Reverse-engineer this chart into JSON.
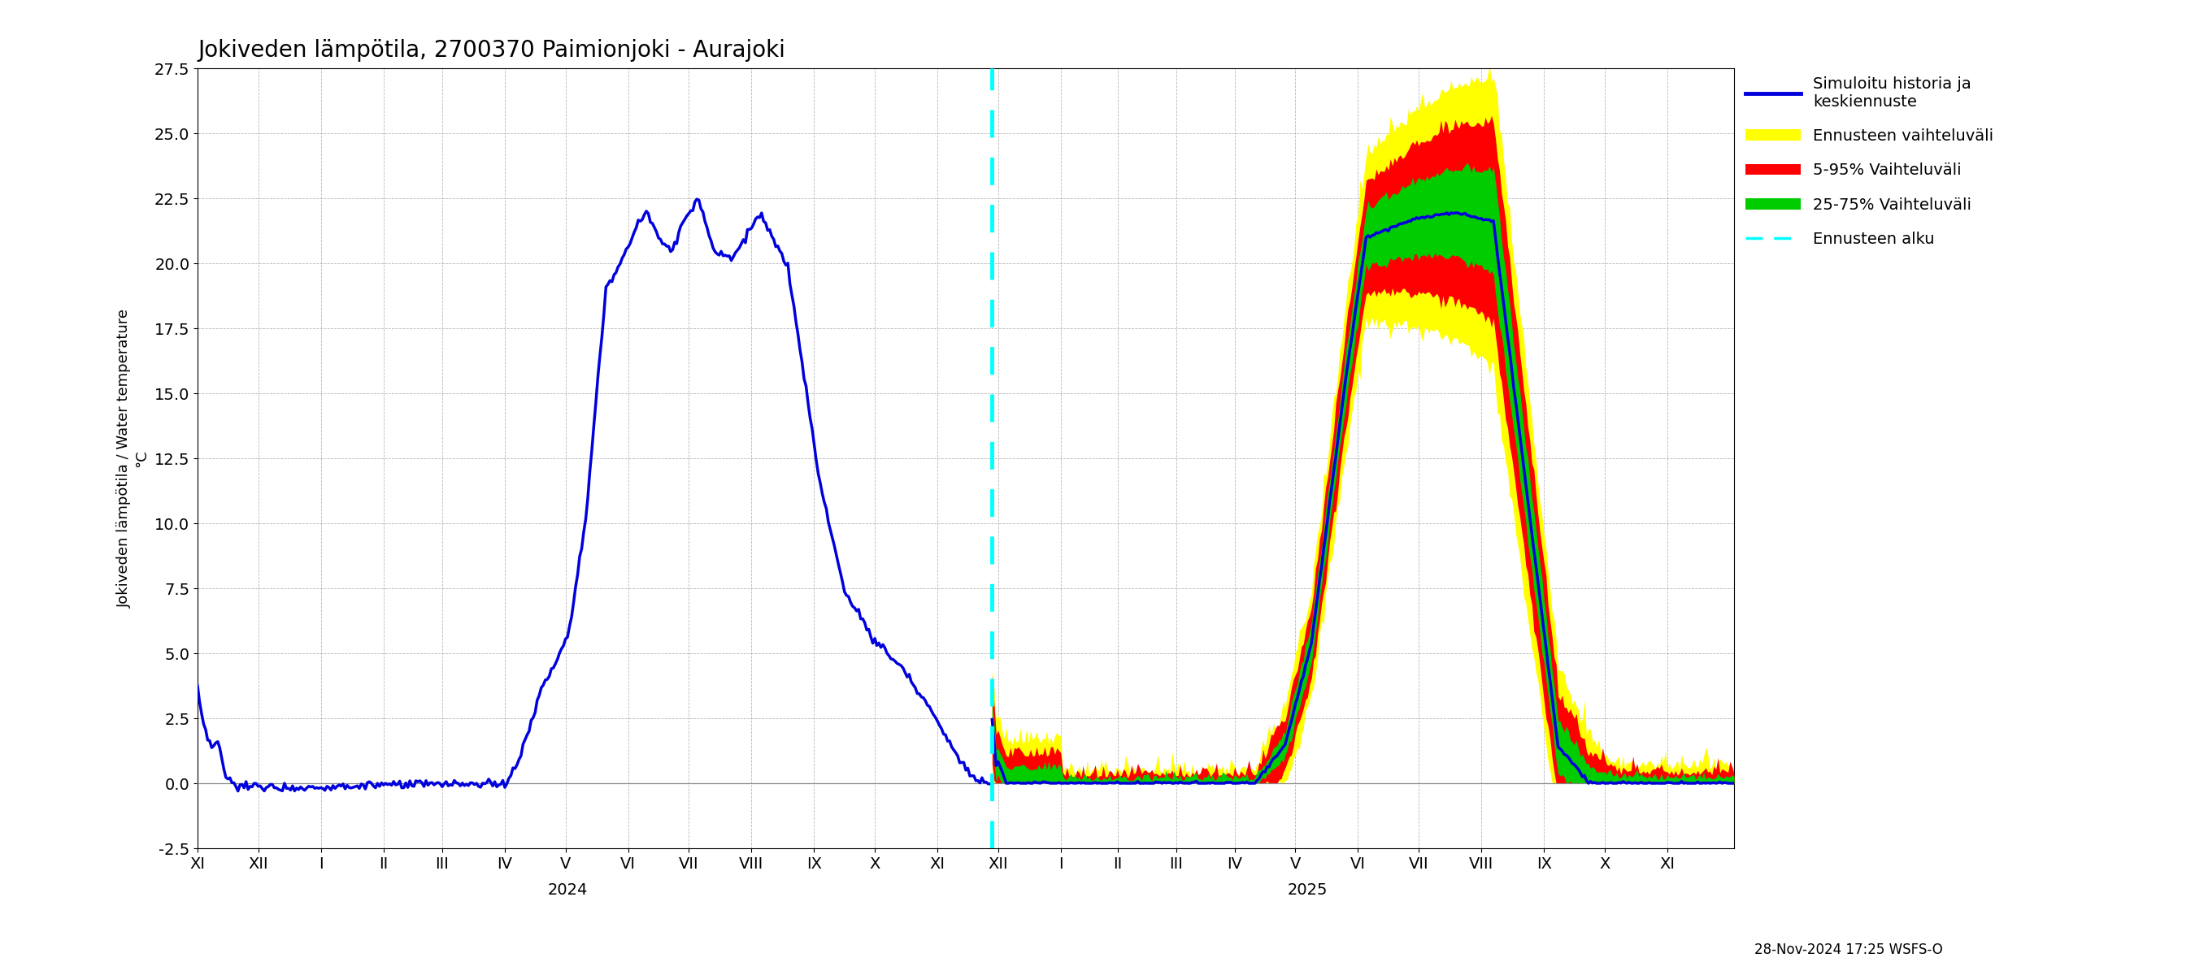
{
  "title": "Jokiveden lämpötila, 2700370 Paimionjoki - Aurajoki",
  "ylabel_main": "Jokiveden lämpötila / Water temperature",
  "ylabel_unit": "°C",
  "ylim": [
    -2.5,
    27.5
  ],
  "ytick_vals": [
    -2.5,
    0.0,
    2.5,
    5.0,
    7.5,
    10.0,
    12.5,
    15.0,
    17.5,
    20.0,
    22.5,
    25.0,
    27.5
  ],
  "ytick_labels": [
    "-2.5",
    "0.0",
    "2.5",
    "5.0",
    "7.5",
    "10.0",
    "12.5",
    "15.0",
    "17.5",
    "20.0",
    "22.5",
    "25.0",
    "27.5"
  ],
  "xlim": [
    0,
    760
  ],
  "month_ticks": [
    0,
    30,
    61,
    92,
    121,
    152,
    182,
    213,
    243,
    274,
    305,
    335,
    366,
    396,
    427,
    455,
    484,
    513,
    543,
    574,
    604,
    635,
    666,
    696,
    727
  ],
  "month_labels": [
    "XI",
    "XII",
    "I",
    "II",
    "III",
    "IV",
    "V",
    "VI",
    "VII",
    "VIII",
    "IX",
    "X",
    "XI",
    "XII",
    "I",
    "II",
    "III",
    "IV",
    "V",
    "VI",
    "VII",
    "VIII",
    "IX",
    "X",
    "XI"
  ],
  "year_2024_x": 183,
  "year_2025_x": 549,
  "forecast_start_day": 393,
  "footnote": "28-Nov-2024 17:25 WSFS-O",
  "hist_end_day": 393,
  "colors": {
    "history_line": "#0000dd",
    "forecast_line": "#0000dd",
    "band_yellow": "#ffff00",
    "band_red": "#ff0000",
    "band_green": "#00cc00",
    "forecast_start": "#00ffff",
    "zero_line": "#888888",
    "grid": "#999999"
  },
  "legend_labels": [
    "Simuloitu historia ja\nkeskiennuste",
    "Ennusteen vaihteluväli",
    "5-95% Vaihteluväli",
    "25-75% Vaihteluväli",
    "Ennusteen alku"
  ],
  "line_width": 2.5,
  "title_fontsize": 20,
  "tick_fontsize": 14,
  "legend_fontsize": 14
}
